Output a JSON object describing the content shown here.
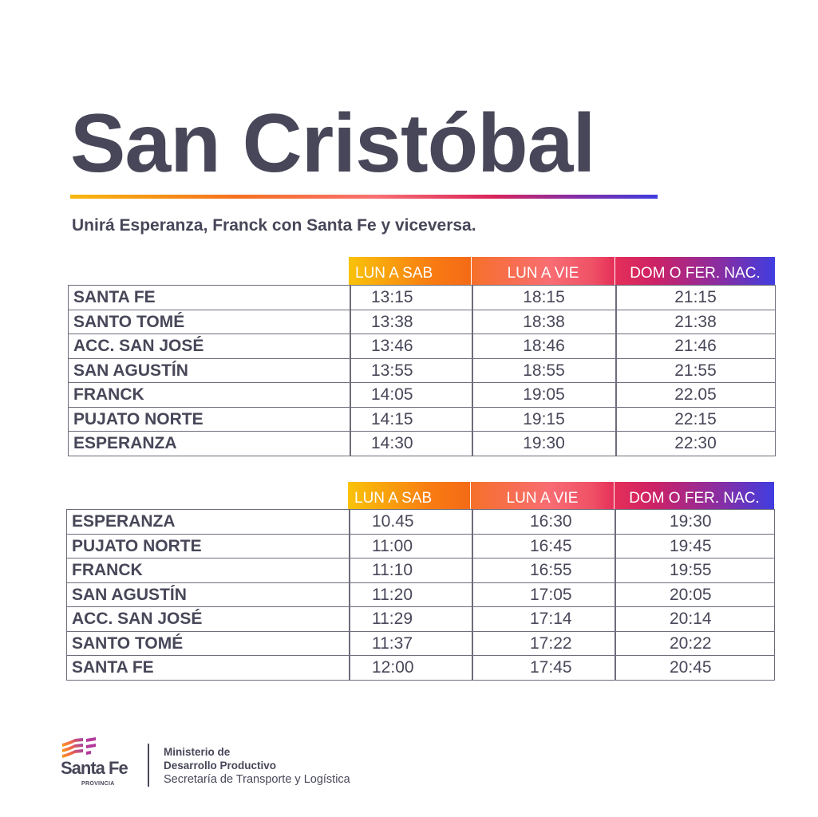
{
  "title": "San Cristóbal",
  "subtitle": "Unirá Esperanza, Franck con Santa Fe y viceversa.",
  "colors": {
    "text": "#474759",
    "gradient_start": "#f7b80e",
    "gradient_mid": "#f87072",
    "gradient_end": "#3f3de0",
    "grid": "#6d6d7c"
  },
  "tables": [
    {
      "headers": [
        "LUN A SAB",
        "LUN A VIE",
        "DOM O FER. NAC."
      ],
      "rows": [
        {
          "stop": "SANTA FE",
          "times": [
            "13:15",
            "18:15",
            "21:15"
          ]
        },
        {
          "stop": "SANTO TOMÉ",
          "times": [
            "13:38",
            "18:38",
            "21:38"
          ]
        },
        {
          "stop": "ACC. SAN JOSÉ",
          "times": [
            "13:46",
            "18:46",
            "21:46"
          ]
        },
        {
          "stop": "SAN AGUSTÍN",
          "times": [
            "13:55",
            "18:55",
            "21:55"
          ]
        },
        {
          "stop": "FRANCK",
          "times": [
            "14:05",
            "19:05",
            "22.05"
          ]
        },
        {
          "stop": "PUJATO NORTE",
          "times": [
            "14:15",
            "19:15",
            "22:15"
          ]
        },
        {
          "stop": "ESPERANZA",
          "times": [
            "14:30",
            "19:30",
            "22:30"
          ]
        }
      ]
    },
    {
      "headers": [
        "LUN A SAB",
        "LUN A VIE",
        "DOM O FER. NAC."
      ],
      "rows": [
        {
          "stop": "ESPERANZA",
          "times": [
            "10.45",
            "16:30",
            "19:30"
          ]
        },
        {
          "stop": "PUJATO NORTE",
          "times": [
            "11:00",
            "16:45",
            "19:45"
          ]
        },
        {
          "stop": "FRANCK",
          "times": [
            "11:10",
            "16:55",
            "19:55"
          ]
        },
        {
          "stop": "SAN AGUSTÍN",
          "times": [
            "11:20",
            "17:05",
            "20:05"
          ]
        },
        {
          "stop": "ACC. SAN JOSÉ",
          "times": [
            "11:29",
            "17:14",
            "20:14"
          ]
        },
        {
          "stop": "SANTO TOMÉ",
          "times": [
            "11:37",
            "17:22",
            "20:22"
          ]
        },
        {
          "stop": "SANTA FE",
          "times": [
            "12:00",
            "17:45",
            "20:45"
          ]
        }
      ]
    }
  ],
  "footer": {
    "logo_text": "Santa Fe",
    "logo_subtext": "PROVINCIA",
    "logo_icon": "santa-fe-flag-icon",
    "ministry_line1": "Ministerio de",
    "ministry_line2": "Desarrollo Productivo",
    "secretariat": "Secretaría de Transporte y Logística"
  }
}
